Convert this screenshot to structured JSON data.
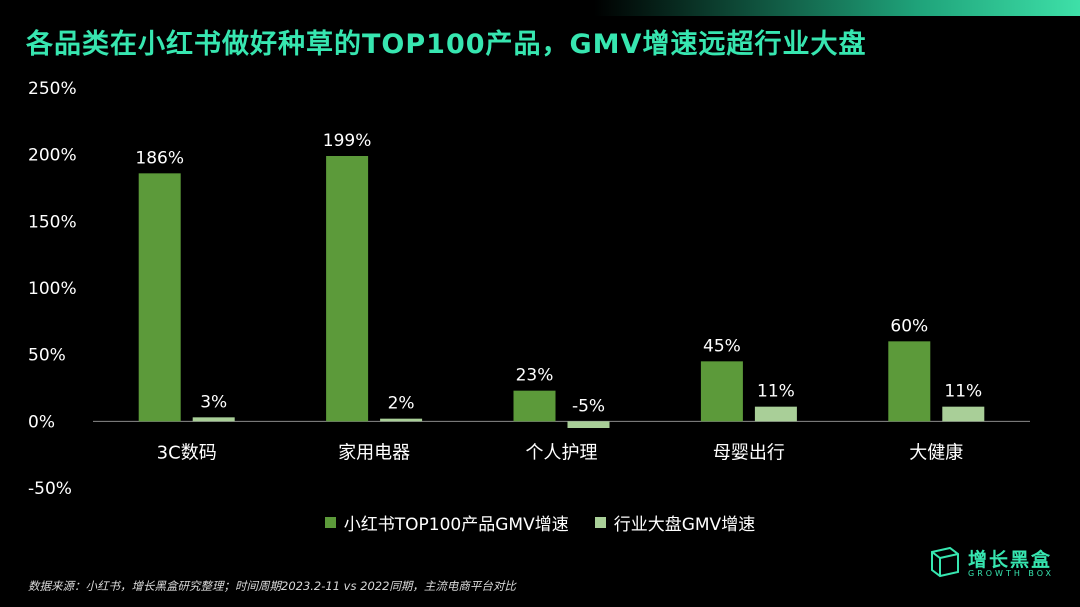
{
  "header": {
    "title": "各品类在小红书做好种草的TOP100产品，GMV增速远超行业大盘"
  },
  "chart_data": {
    "type": "bar",
    "categories": [
      "3C数码",
      "家用电器",
      "个人护理",
      "母婴出行",
      "大健康"
    ],
    "series": [
      {
        "name": "小红书TOP100产品GMV增速",
        "values": [
          186,
          199,
          23,
          45,
          60
        ],
        "labels": [
          "186%",
          "199%",
          "23%",
          "45%",
          "60%"
        ],
        "color": "#5c9a3a"
      },
      {
        "name": "行业大盘GMV增速",
        "values": [
          3,
          2,
          -5,
          11,
          11
        ],
        "labels": [
          "3%",
          "2%",
          "-5%",
          "11%",
          "11%"
        ],
        "color": "#a9cf98"
      }
    ],
    "ylim": [
      -50,
      250
    ],
    "yticks": [
      "250%",
      "200%",
      "150%",
      "100%",
      "50%",
      "0%",
      "-50%"
    ],
    "ytick_values": [
      250,
      200,
      150,
      100,
      50,
      0,
      -50
    ],
    "grid": false,
    "legend": "bottom"
  },
  "footer": {
    "source": "数据来源：小红书，增长黑盒研究整理；时间周期2023.2-11 vs 2022同期，主流电商平台对比"
  },
  "logo": {
    "name": "增长黑盒",
    "sub": "GROWTH BOX",
    "color": "#37e6b0"
  }
}
